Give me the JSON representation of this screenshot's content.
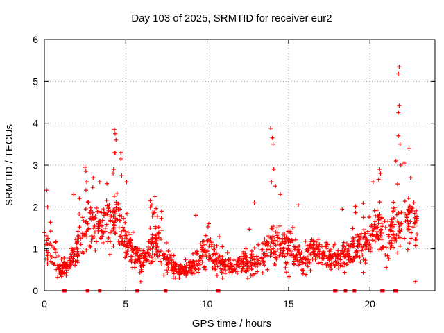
{
  "chart_data": {
    "type": "scatter",
    "title": "Day 103 of 2025, SRMTID for receiver eur2",
    "xlabel": "GPS time / hours",
    "ylabel": "SRMTID / TECUs",
    "xlim": [
      0,
      24
    ],
    "ylim": [
      0,
      6
    ],
    "xticks": [
      "0",
      "5",
      "10",
      "15",
      "20"
    ],
    "xtick_values": [
      0,
      5,
      10,
      15,
      20
    ],
    "yticks": [
      "0",
      "1",
      "2",
      "3",
      "4",
      "5",
      "6"
    ],
    "ytick_values": [
      0,
      1,
      2,
      3,
      4,
      5,
      6
    ],
    "grid": true,
    "marker": "+",
    "color": "#ff0000",
    "envelope": {
      "note": "approximate typical level of the scattered SRMTID points per hour (dense cloud)",
      "x": [
        0,
        0.5,
        1,
        1.5,
        2,
        2.5,
        3,
        3.5,
        4,
        4.5,
        5,
        5.5,
        6,
        6.5,
        7,
        7.5,
        8,
        8.5,
        9,
        9.5,
        10,
        10.5,
        11,
        11.5,
        12,
        12.5,
        13,
        13.5,
        14,
        14.5,
        15,
        15.5,
        16,
        16.5,
        17,
        17.5,
        18,
        18.5,
        19,
        19.5,
        20,
        20.5,
        21,
        21.5,
        22,
        22.5,
        22.9
      ],
      "center": [
        0.9,
        1.0,
        0.5,
        0.6,
        1.0,
        1.3,
        1.6,
        1.5,
        1.6,
        1.7,
        1.1,
        0.8,
        0.6,
        1.1,
        1.2,
        0.7,
        0.5,
        0.5,
        0.55,
        0.8,
        1.0,
        0.85,
        0.6,
        0.55,
        0.65,
        0.7,
        0.6,
        0.95,
        1.2,
        1.0,
        1.0,
        0.8,
        0.7,
        0.9,
        0.9,
        0.8,
        0.75,
        0.9,
        1.0,
        1.1,
        1.2,
        1.6,
        1.0,
        1.5,
        1.7,
        1.6,
        1.4
      ],
      "spread": [
        0.5,
        0.5,
        0.15,
        0.2,
        0.4,
        0.5,
        0.55,
        0.55,
        0.6,
        0.6,
        0.4,
        0.3,
        0.3,
        0.45,
        0.45,
        0.3,
        0.2,
        0.2,
        0.2,
        0.35,
        0.4,
        0.35,
        0.25,
        0.2,
        0.25,
        0.3,
        0.3,
        0.4,
        0.5,
        0.45,
        0.45,
        0.35,
        0.3,
        0.3,
        0.3,
        0.3,
        0.3,
        0.35,
        0.4,
        0.45,
        0.5,
        0.6,
        0.45,
        0.6,
        0.7,
        0.6,
        0.5
      ]
    },
    "peaks": [
      {
        "x": 0.15,
        "y": 2.4
      },
      {
        "x": 0.2,
        "y": 2.0
      },
      {
        "x": 1.8,
        "y": 2.3
      },
      {
        "x": 2.15,
        "y": 2.2
      },
      {
        "x": 2.5,
        "y": 2.95
      },
      {
        "x": 2.55,
        "y": 2.85
      },
      {
        "x": 2.6,
        "y": 2.6
      },
      {
        "x": 3.0,
        "y": 2.7
      },
      {
        "x": 3.4,
        "y": 2.6
      },
      {
        "x": 4.3,
        "y": 3.85
      },
      {
        "x": 4.35,
        "y": 3.75
      },
      {
        "x": 4.3,
        "y": 3.3
      },
      {
        "x": 4.4,
        "y": 3.6
      },
      {
        "x": 4.25,
        "y": 2.9
      },
      {
        "x": 4.7,
        "y": 3.3
      },
      {
        "x": 4.7,
        "y": 3.15
      },
      {
        "x": 4.75,
        "y": 2.75
      },
      {
        "x": 5.05,
        "y": 2.6
      },
      {
        "x": 6.5,
        "y": 2.15
      },
      {
        "x": 6.6,
        "y": 2.05
      },
      {
        "x": 7.2,
        "y": 1.9
      },
      {
        "x": 9.3,
        "y": 1.8
      },
      {
        "x": 10.1,
        "y": 1.6
      },
      {
        "x": 12.9,
        "y": 2.1
      },
      {
        "x": 13.9,
        "y": 3.88
      },
      {
        "x": 14.0,
        "y": 3.65
      },
      {
        "x": 14.05,
        "y": 3.5
      },
      {
        "x": 14.1,
        "y": 2.9
      },
      {
        "x": 13.95,
        "y": 2.6
      },
      {
        "x": 14.2,
        "y": 2.5
      },
      {
        "x": 14.5,
        "y": 2.3
      },
      {
        "x": 15.6,
        "y": 2.05
      },
      {
        "x": 18.3,
        "y": 1.95
      },
      {
        "x": 19.1,
        "y": 2.0
      },
      {
        "x": 20.2,
        "y": 2.6
      },
      {
        "x": 20.6,
        "y": 2.9
      },
      {
        "x": 20.65,
        "y": 2.8
      },
      {
        "x": 21.6,
        "y": 3.1
      },
      {
        "x": 21.7,
        "y": 2.55
      },
      {
        "x": 21.75,
        "y": 3.7
      },
      {
        "x": 21.8,
        "y": 5.35
      },
      {
        "x": 21.75,
        "y": 5.18
      },
      {
        "x": 21.8,
        "y": 4.42
      },
      {
        "x": 21.75,
        "y": 4.25
      },
      {
        "x": 21.85,
        "y": 3.5
      },
      {
        "x": 21.9,
        "y": 3.0
      },
      {
        "x": 22.1,
        "y": 3.05
      },
      {
        "x": 22.4,
        "y": 3.4
      },
      {
        "x": 22.5,
        "y": 2.7
      },
      {
        "x": 22.7,
        "y": 2.1
      },
      {
        "x": 22.8,
        "y": 0.22
      }
    ],
    "gaps_at_zero": [
      {
        "x": 1.2
      },
      {
        "x": 1.25
      },
      {
        "x": 2.65
      },
      {
        "x": 3.4
      },
      {
        "x": 5.7
      },
      {
        "x": 7.45
      },
      {
        "x": 10.65
      },
      {
        "x": 10.7
      },
      {
        "x": 17.85
      },
      {
        "x": 17.9
      },
      {
        "x": 18.5
      },
      {
        "x": 19.05
      },
      {
        "x": 20.75
      },
      {
        "x": 20.8
      },
      {
        "x": 21.55
      },
      {
        "x": 21.6
      }
    ]
  }
}
